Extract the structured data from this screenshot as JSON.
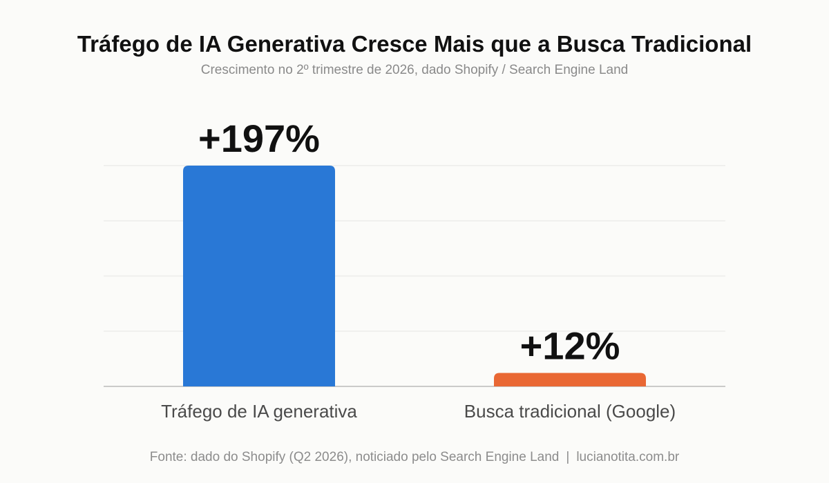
{
  "header": {
    "title": "Tráfego de IA Generativa Cresce Mais que a Busca Tradicional",
    "subtitle": "Crescimento no 2º trimestre de 2026, dado Shopify / Search Engine Land"
  },
  "footer": {
    "source": "Fonte: dado do Shopify (Q2 2026), noticiado pelo Search Engine Land",
    "separator": "|",
    "site": "lucianotita.com.br"
  },
  "chart_data": {
    "type": "bar",
    "title": "Tráfego de IA Generativa Cresce Mais que a Busca Tradicional",
    "subtitle": "Crescimento no 2º trimestre de 2026, dado Shopify / Search Engine Land",
    "categories": [
      "Tráfego de IA generativa",
      "Busca tradicional (Google)"
    ],
    "values": [
      197,
      12
    ],
    "data_labels": [
      "+197%",
      "+12%"
    ],
    "colors": [
      "#2978d6",
      "#e96834"
    ],
    "ylim": [
      0,
      197
    ],
    "xlabel": "",
    "ylabel": "",
    "grid": true,
    "legend": "none"
  }
}
